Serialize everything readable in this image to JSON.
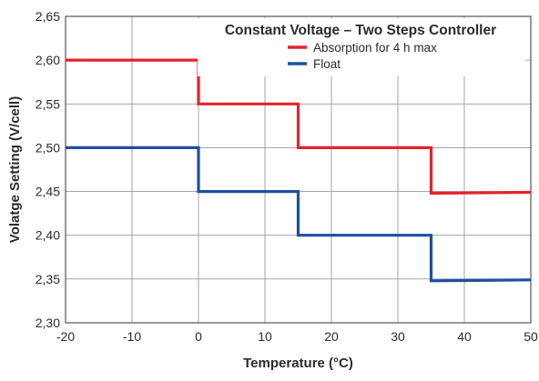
{
  "chart_data": {
    "type": "line",
    "title": "Constant Voltage – Two Steps Controller",
    "xlabel": "Temperature (°C)",
    "ylabel": "Volatge Setting (V/cell)",
    "xlim": [
      -20,
      50
    ],
    "ylim": [
      2.3,
      2.65
    ],
    "x_ticks": [
      "-20",
      "-10",
      "0",
      "10",
      "20",
      "30",
      "40",
      "50"
    ],
    "y_ticks": [
      "2,30",
      "2,35",
      "2,40",
      "2,45",
      "2,50",
      "2,55",
      "2,60",
      "2,65"
    ],
    "x_tick_values": [
      -20,
      -10,
      0,
      10,
      20,
      30,
      40,
      50
    ],
    "y_tick_values": [
      2.3,
      2.35,
      2.4,
      2.45,
      2.5,
      2.55,
      2.6,
      2.65
    ],
    "grid": true,
    "legend_position": "top-right",
    "series": [
      {
        "name": "Absorption for 4 h max",
        "color": "#e3232b",
        "step": true,
        "x": [
          -20,
          0,
          0,
          15,
          15,
          35,
          35,
          50
        ],
        "y": [
          2.6,
          2.6,
          2.55,
          2.55,
          2.5,
          2.5,
          2.448,
          2.449
        ]
      },
      {
        "name": "Float",
        "color": "#1f4fa0",
        "step": true,
        "x": [
          -20,
          0,
          0,
          15,
          15,
          35,
          35,
          50
        ],
        "y": [
          2.5,
          2.5,
          2.45,
          2.45,
          2.4,
          2.4,
          2.348,
          2.349
        ]
      }
    ]
  }
}
